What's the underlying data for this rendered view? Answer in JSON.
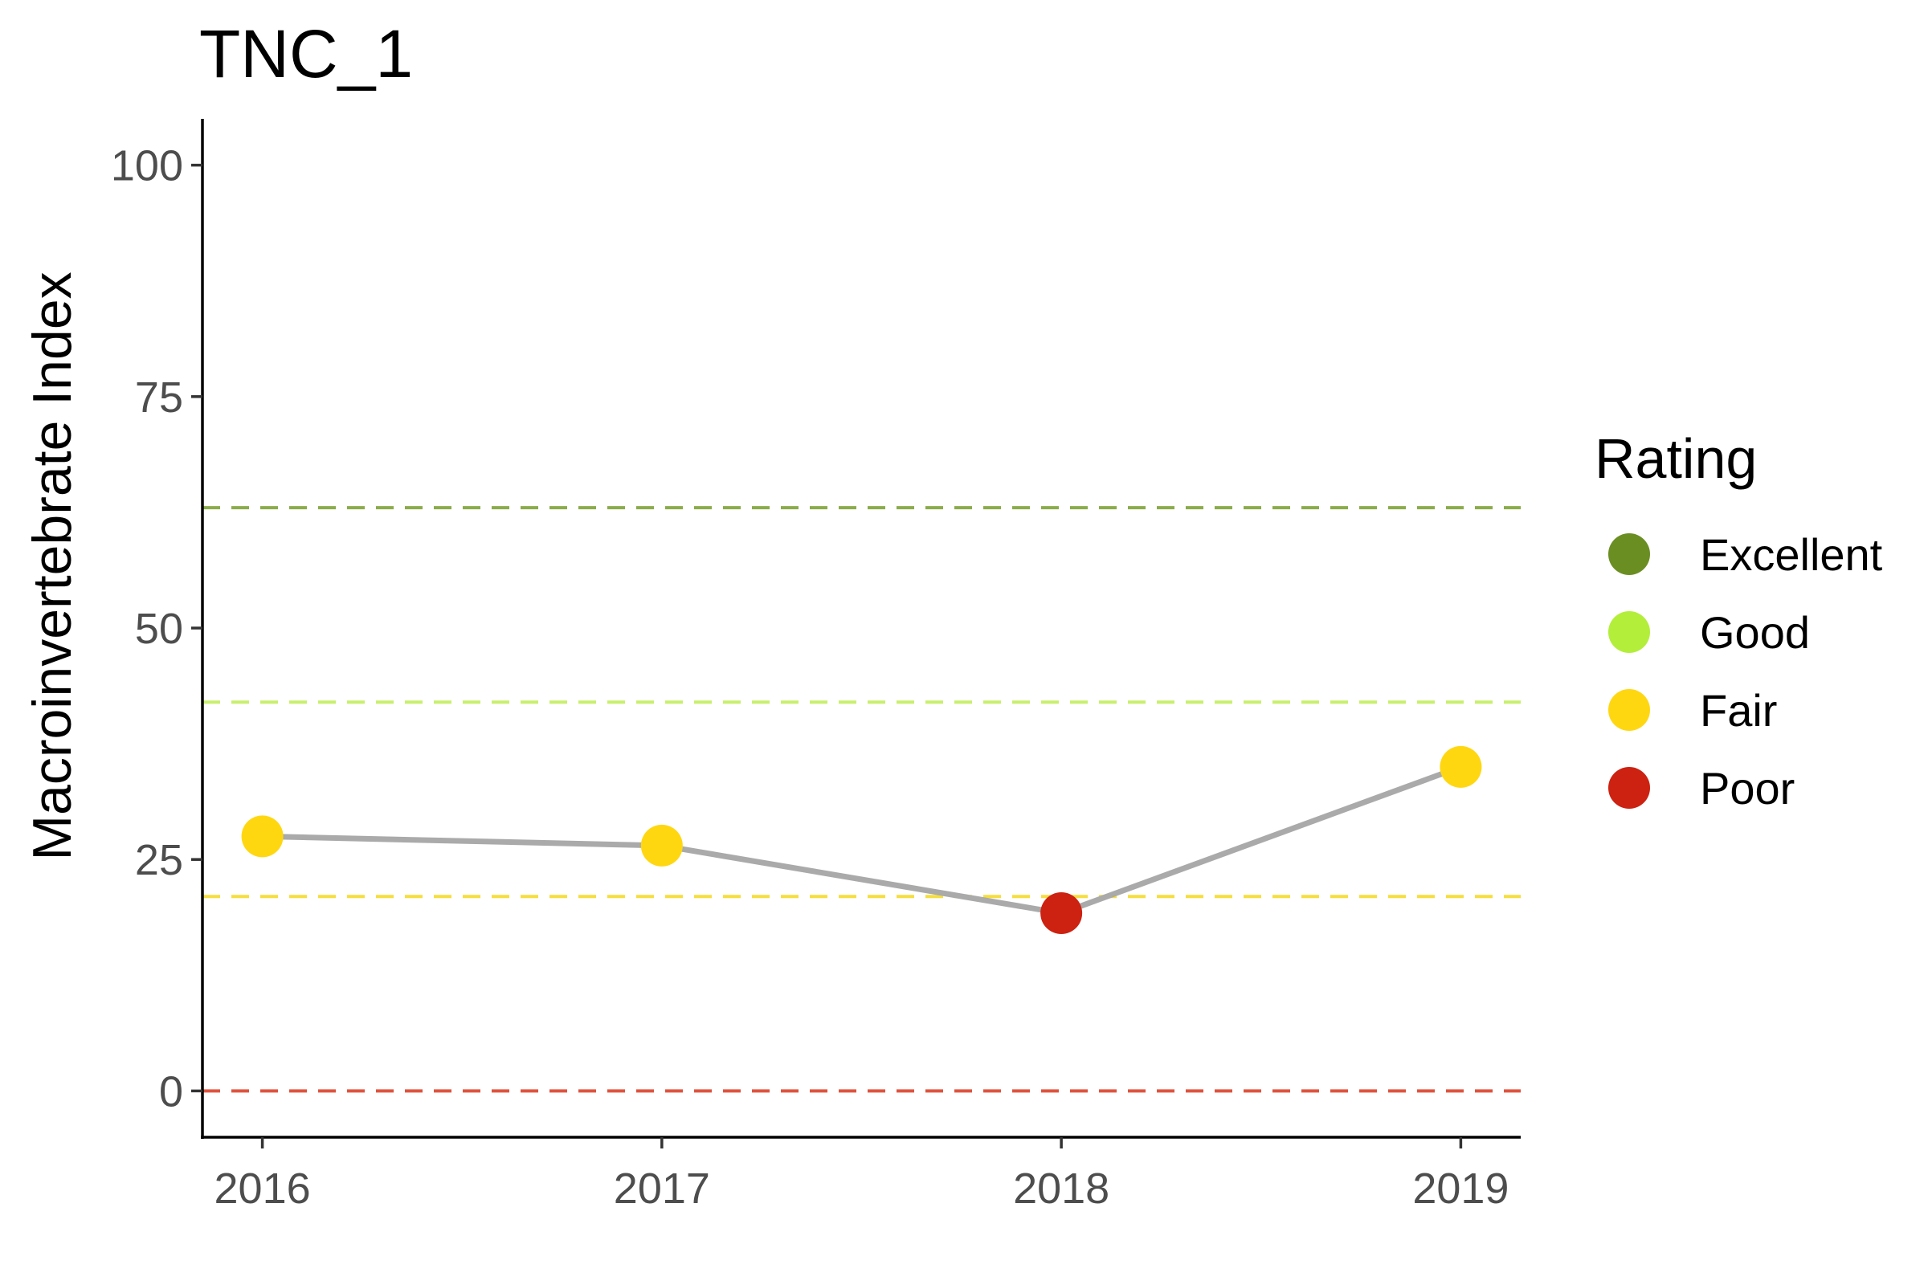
{
  "chart_data": {
    "type": "line",
    "title": "TNC_1",
    "xlabel": "",
    "ylabel": "Macroinvertebrate Index",
    "x": [
      2016,
      2017,
      2018,
      2019
    ],
    "x_tick_labels": [
      "2016",
      "2017",
      "2018",
      "2019"
    ],
    "y_tick_labels": [
      "0",
      "25",
      "50",
      "75",
      "100"
    ],
    "y_ticks": [
      0,
      25,
      50,
      75,
      100
    ],
    "ylim": [
      -5,
      105
    ],
    "xlim": [
      2015.85,
      2019.15
    ],
    "grid": false,
    "series": [
      {
        "values": [
          27.5,
          26.5,
          19.2,
          35.0
        ],
        "ratings": [
          "Fair",
          "Fair",
          "Poor",
          "Fair"
        ],
        "line_color": "#aaaaaa"
      }
    ],
    "thresholds": [
      {
        "rating": "Excellent",
        "value": 63,
        "color": "#8aac4a"
      },
      {
        "rating": "Good",
        "value": 42,
        "color": "#c9ef6e"
      },
      {
        "rating": "Fair",
        "value": 21,
        "color": "#f6de3e"
      },
      {
        "rating": "Poor",
        "value": 0,
        "color": "#e0533e"
      }
    ],
    "legend": {
      "title": "Rating",
      "placement": "right",
      "entries": [
        {
          "label": "Excellent",
          "color": "#6b8e23"
        },
        {
          "label": "Good",
          "color": "#b3ee3a"
        },
        {
          "label": "Fair",
          "color": "#ffd711"
        },
        {
          "label": "Poor",
          "color": "#cd2111"
        }
      ]
    }
  }
}
